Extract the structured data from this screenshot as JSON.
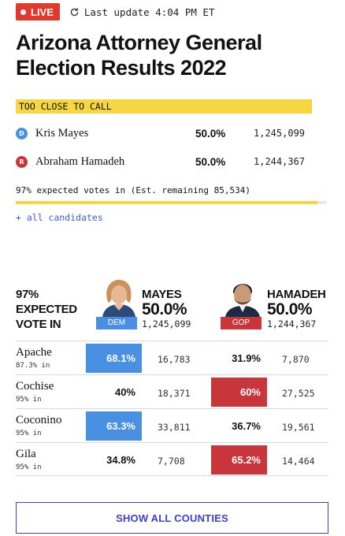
{
  "header": {
    "live_label": "LIVE",
    "update_text": "Last update 4:04 PM ET"
  },
  "title": "Arizona Attorney General Election Results 2022",
  "call_status": "TOO CLOSE TO CALL",
  "candidates": [
    {
      "party_letter": "D",
      "name": "Kris Mayes",
      "pct": "50.0%",
      "votes": "1,245,099"
    },
    {
      "party_letter": "R",
      "name": "Abraham Hamadeh",
      "pct": "50.0%",
      "votes": "1,244,367"
    }
  ],
  "expected_votes_text": "97% expected votes in (Est. remaining 85,534)",
  "expected_votes_fraction": 0.97,
  "all_candidates_link": "+ all candidates",
  "county_header": {
    "expected_label": "97% EXPECTED VOTE IN",
    "dem": {
      "name": "MAYES",
      "pct": "50.0%",
      "votes": "1,245,099",
      "party": "DEM"
    },
    "gop": {
      "name": "HAMADEH",
      "pct": "50.0%",
      "votes": "1,244,367",
      "party": "GOP"
    }
  },
  "counties": [
    {
      "name": "Apache",
      "reporting": "87.3% in",
      "dem_pct": "68.1%",
      "dem_votes": "16,783",
      "rep_pct": "31.9%",
      "rep_votes": "7,870",
      "winner": "dem"
    },
    {
      "name": "Cochise",
      "reporting": "95% in",
      "dem_pct": "40%",
      "dem_votes": "18,371",
      "rep_pct": "60%",
      "rep_votes": "27,525",
      "winner": "rep"
    },
    {
      "name": "Coconino",
      "reporting": "95% in",
      "dem_pct": "63.3%",
      "dem_votes": "33,811",
      "rep_pct": "36.7%",
      "rep_votes": "19,561",
      "winner": "dem"
    },
    {
      "name": "Gila",
      "reporting": "95% in",
      "dem_pct": "34.8%",
      "dem_votes": "7,708",
      "rep_pct": "65.2%",
      "rep_votes": "14,464",
      "winner": "rep"
    }
  ],
  "show_all_button": "SHOW ALL COUNTIES",
  "colors": {
    "dem": "#4a90e2",
    "gop": "#c8363b",
    "banner": "#f6d743",
    "link": "#3b3fd6",
    "live": "#e03a2f"
  }
}
